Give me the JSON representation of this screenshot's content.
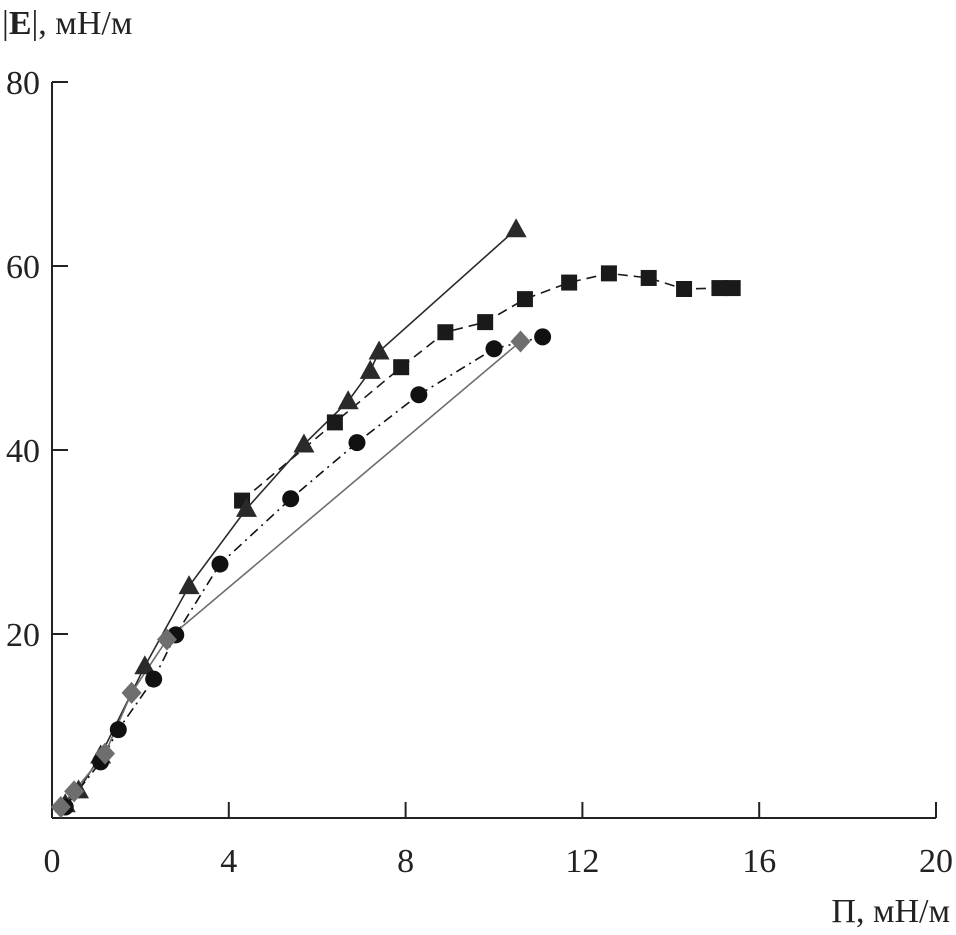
{
  "chart_data": {
    "type": "scatter",
    "title": "",
    "ylabel_bar": "|",
    "ylabel_symbol": "E",
    "ylabel_rest": "|, мН/м",
    "xlabel": "Π, мН/м",
    "xlim": [
      0,
      20
    ],
    "ylim": [
      0,
      80
    ],
    "x_ticks": [
      "0",
      "4",
      "8",
      "12",
      "16",
      "20"
    ],
    "y_ticks": [
      "20",
      "40",
      "60",
      "80"
    ],
    "x_tick_values": [
      0,
      4,
      8,
      12,
      16,
      20
    ],
    "y_tick_values": [
      20,
      40,
      60,
      80
    ],
    "grid": false,
    "legend": "none",
    "series": [
      {
        "marker": "square",
        "color": "#1a1a1a",
        "line": "dashed",
        "x": [
          4.3,
          6.4,
          7.9,
          8.9,
          9.8,
          10.7,
          11.7,
          12.6,
          13.5,
          14.3,
          15.1,
          15.4
        ],
        "y": [
          34.5,
          43,
          49,
          52.8,
          53.9,
          56.4,
          58.2,
          59.2,
          58.7,
          57.5,
          57.6,
          57.6
        ]
      },
      {
        "marker": "triangle",
        "color": "#2a2a2a",
        "line": "solid",
        "x": [
          0.3,
          0.6,
          1.1,
          2.1,
          3.1,
          4.4,
          5.7,
          6.7,
          7.2,
          7.4,
          10.5
        ],
        "y": [
          1.5,
          3,
          6.8,
          16.5,
          25.2,
          33.6,
          40.6,
          45.3,
          48.6,
          50.7,
          64
        ]
      },
      {
        "marker": "circle",
        "color": "#111111",
        "line": "dashdot",
        "x": [
          0.3,
          1.1,
          1.5,
          2.3,
          2.8,
          3.8,
          5.4,
          6.9,
          8.3,
          10,
          11.1
        ],
        "y": [
          1.2,
          6.1,
          9.6,
          15.1,
          19.9,
          27.6,
          34.7,
          40.8,
          46,
          51,
          52.3
        ]
      },
      {
        "marker": "diamond",
        "color": "#6e6e6e",
        "line": "solid",
        "x": [
          0.2,
          0.5,
          1.2,
          1.8,
          2.6,
          10.6
        ],
        "y": [
          1.2,
          2.9,
          7,
          13.6,
          19.4,
          51.8
        ]
      }
    ]
  }
}
